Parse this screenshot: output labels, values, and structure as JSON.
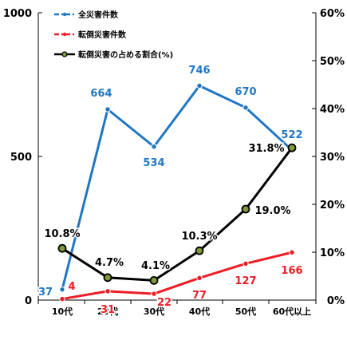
{
  "chart_data": {
    "type": "line",
    "categories": [
      "10代",
      "20代",
      "30代",
      "40代",
      "50代",
      "60代以上"
    ],
    "left_axis": {
      "ylim": [
        0,
        1000
      ],
      "ticks": [
        "0",
        "500",
        "1000"
      ]
    },
    "right_axis": {
      "ylim": [
        0,
        60
      ],
      "ticks": [
        "0%",
        "10%",
        "20%",
        "30%",
        "40%",
        "50%",
        "60%"
      ]
    },
    "series": [
      {
        "name": "全災害件数",
        "axis": "left",
        "color": "#1f77c4",
        "values": [
          37,
          664,
          534,
          746,
          670,
          522
        ],
        "labels": [
          "37",
          "664",
          "534",
          "746",
          "670",
          "522"
        ]
      },
      {
        "name": "転倒災害件数",
        "axis": "left",
        "color": "#ee1c25",
        "values": [
          4,
          31,
          22,
          77,
          127,
          166
        ],
        "labels": [
          "4",
          "31",
          "22",
          "77",
          "127",
          "166"
        ]
      },
      {
        "name": "転倒災害の占める割合(%)",
        "axis": "right",
        "color": "#000000",
        "marker_color": "#7f9a3a",
        "values": [
          10.8,
          4.7,
          4.1,
          10.3,
          19.0,
          31.8
        ],
        "labels": [
          "10.8%",
          "4.7%",
          "4.1%",
          "10.3%",
          "19.0%",
          "31.8%"
        ]
      }
    ]
  }
}
